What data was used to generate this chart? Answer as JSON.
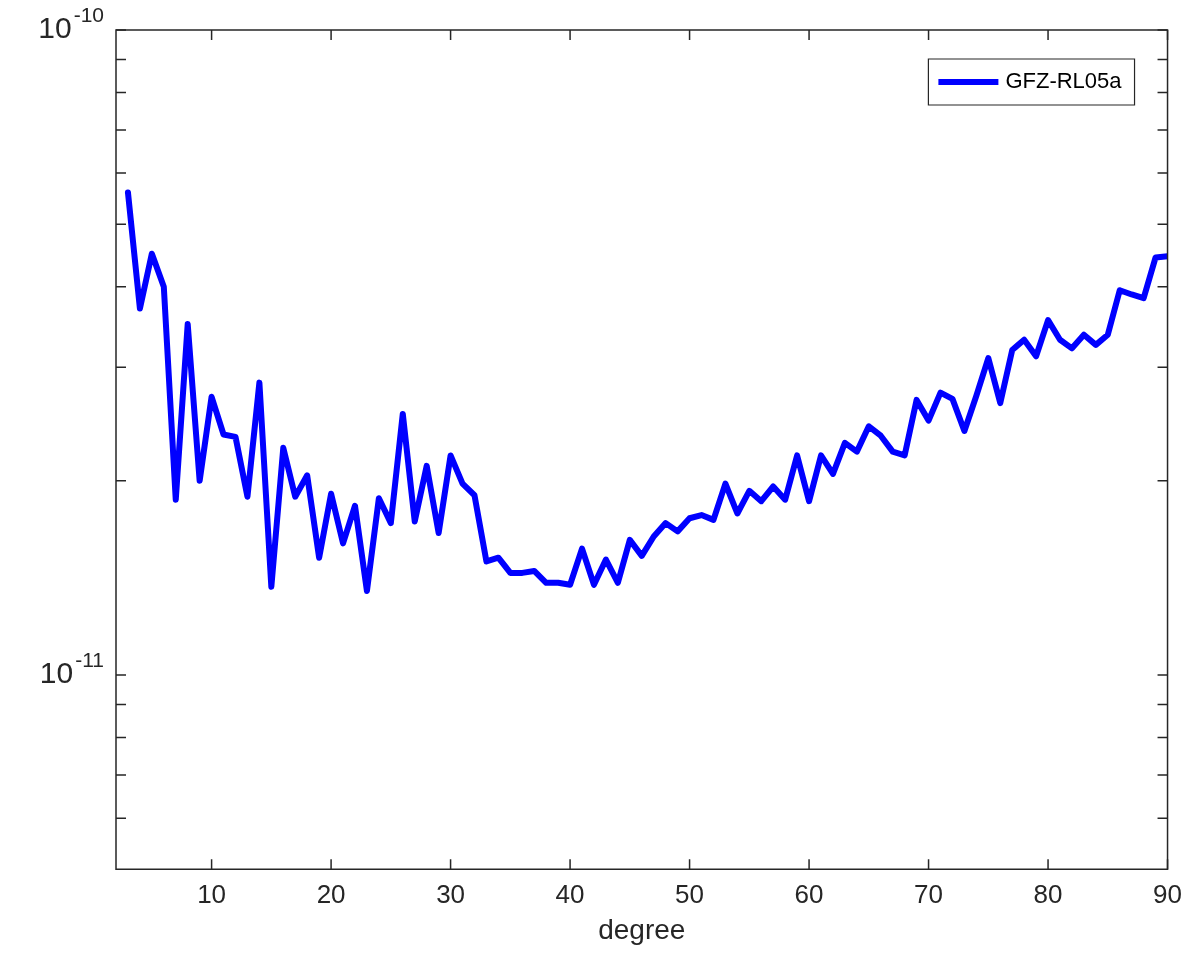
{
  "chart_data": {
    "type": "line",
    "xlabel": "degree",
    "log": "y",
    "legend": "top right",
    "xlim": [
      2,
      90
    ],
    "xticks": [
      10,
      20,
      30,
      40,
      50,
      60,
      70,
      80,
      90
    ],
    "ylim": [
      5e-12,
      1e-10
    ],
    "yticks": [
      {
        "value": 6e-12,
        "label": null
      },
      {
        "value": 7e-12,
        "label": null
      },
      {
        "value": 8e-12,
        "label": null
      },
      {
        "value": 9e-12,
        "label": null
      },
      {
        "value": 1e-11,
        "label": "10$^{-11}$"
      },
      {
        "value": 2e-11,
        "label": null
      },
      {
        "value": 3e-11,
        "label": null
      },
      {
        "value": 4e-11,
        "label": null
      },
      {
        "value": 5e-11,
        "label": null
      },
      {
        "value": 6e-11,
        "label": null
      },
      {
        "value": 7e-11,
        "label": null
      },
      {
        "value": 8e-11,
        "label": null
      },
      {
        "value": 9e-11,
        "label": null
      },
      {
        "value": 1e-10,
        "label": "10$^{-10}$"
      }
    ],
    "x": [
      3,
      4,
      5,
      6,
      7,
      8,
      9,
      10,
      11,
      12,
      13,
      14,
      15,
      16,
      17,
      18,
      19,
      20,
      21,
      22,
      23,
      24,
      25,
      26,
      27,
      28,
      29,
      30,
      31,
      32,
      33,
      34,
      35,
      36,
      37,
      38,
      39,
      40,
      41,
      42,
      43,
      44,
      45,
      46,
      47,
      48,
      49,
      50,
      51,
      52,
      53,
      54,
      55,
      56,
      57,
      58,
      59,
      60,
      61,
      62,
      63,
      64,
      65,
      66,
      67,
      68,
      69,
      70,
      71,
      72,
      73,
      74,
      75,
      76,
      77,
      78,
      79,
      80,
      81,
      82,
      83,
      84,
      85,
      86,
      87,
      88,
      89,
      90
    ],
    "series": [
      {
        "name": "GFZ-RL05a",
        "color": "#0000ff",
        "line_style": "solid",
        "marker": "none",
        "values": [
          5.6e-11,
          3.7e-11,
          4.5e-11,
          4e-11,
          1.87e-11,
          3.5e-11,
          2e-11,
          2.7e-11,
          2.36e-11,
          2.34e-11,
          1.89e-11,
          2.84e-11,
          1.37e-11,
          2.25e-11,
          1.89e-11,
          2.04e-11,
          1.52e-11,
          1.91e-11,
          1.6e-11,
          1.83e-11,
          1.35e-11,
          1.88e-11,
          1.72e-11,
          2.54e-11,
          1.73e-11,
          2.11e-11,
          1.66e-11,
          2.19e-11,
          1.98e-11,
          1.9e-11,
          1.5e-11,
          1.52e-11,
          1.44e-11,
          1.44e-11,
          1.45e-11,
          1.39e-11,
          1.39e-11,
          1.38e-11,
          1.57e-11,
          1.38e-11,
          1.51e-11,
          1.39e-11,
          1.62e-11,
          1.53e-11,
          1.64e-11,
          1.72e-11,
          1.67e-11,
          1.75e-11,
          1.77e-11,
          1.74e-11,
          1.98e-11,
          1.78e-11,
          1.93e-11,
          1.86e-11,
          1.96e-11,
          1.87e-11,
          2.19e-11,
          1.86e-11,
          2.19e-11,
          2.05e-11,
          2.29e-11,
          2.22e-11,
          2.43e-11,
          2.35e-11,
          2.22e-11,
          2.19e-11,
          2.67e-11,
          2.48e-11,
          2.74e-11,
          2.68e-11,
          2.39e-11,
          2.71e-11,
          3.1e-11,
          2.64e-11,
          3.19e-11,
          3.31e-11,
          3.12e-11,
          3.55e-11,
          3.31e-11,
          3.21e-11,
          3.37e-11,
          3.25e-11,
          3.37e-11,
          3.95e-11,
          3.89e-11,
          3.84e-11,
          4.44e-11,
          4.46e-11
        ]
      }
    ]
  }
}
